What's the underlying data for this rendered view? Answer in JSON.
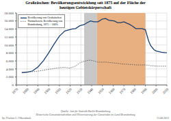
{
  "chart_data": {
    "type": "line",
    "title": "Großzäschen: Bevölkerungsentwicklung seit 1875 auf der Fläche der\nheutigen Gebietskörperschaft",
    "x": [
      1875,
      1880,
      1885,
      1890,
      1895,
      1900,
      1905,
      1910,
      1915,
      1919,
      1922,
      1925,
      1929,
      1933,
      1936,
      1939,
      1942,
      1946,
      1950,
      1953,
      1956,
      1961,
      1964,
      1967,
      1970,
      1973,
      1975,
      1978,
      1981,
      1984,
      1987,
      1990,
      1993,
      1995,
      1998,
      2000,
      2003,
      2005,
      2008,
      2010
    ],
    "series": [
      {
        "name": "Bevölkerung von Großzäschen",
        "color": "#1a3e6e",
        "line_style": "solid",
        "values": [
          3100,
          3200,
          3500,
          4500,
          6000,
          8000,
          10200,
          12200,
          13500,
          13800,
          14000,
          14100,
          14800,
          15100,
          15600,
          16000,
          15800,
          15800,
          16500,
          16600,
          16200,
          16000,
          15600,
          15600,
          15800,
          15400,
          15200,
          14700,
          14100,
          14100,
          14100,
          13800,
          11000,
          9800,
          8800,
          8500,
          8300,
          8200,
          8100,
          8050
        ]
      },
      {
        "name": "Normalisierte Bevölkerung von\nBrandenburg, 1875 = 100%",
        "color": "#444444",
        "line_style": "dotted",
        "values": [
          3100,
          3200,
          3300,
          3450,
          3650,
          3900,
          4100,
          4300,
          4400,
          4200,
          4400,
          4700,
          5500,
          5900,
          6100,
          6200,
          6000,
          5700,
          5700,
          5700,
          5600,
          5500,
          5400,
          5300,
          5200,
          5200,
          5100,
          5100,
          5000,
          5000,
          5000,
          5000,
          4900,
          4800,
          4800,
          4700,
          4700,
          4700,
          4700,
          4700
        ]
      }
    ],
    "xlim": [
      1870,
      2010
    ],
    "xticks": [
      1870,
      1880,
      1890,
      1900,
      1910,
      1920,
      1930,
      1940,
      1950,
      1960,
      1970,
      1980,
      1990,
      2000,
      2010
    ],
    "ylim": [
      0,
      18000
    ],
    "yticks": [
      0,
      {
        "value": 2000,
        "label": "2.000"
      },
      {
        "value": 4000,
        "label": "4.000"
      },
      {
        "value": 6000,
        "label": "6.000"
      },
      {
        "value": 8000,
        "label": "8.000"
      },
      {
        "value": 10000,
        "label": "10.000"
      },
      {
        "value": 12000,
        "label": "12.000"
      },
      {
        "value": 14000,
        "label": "14.000"
      },
      {
        "value": 16000,
        "label": "16.000"
      },
      {
        "value": 18000,
        "label": "18.000"
      }
    ],
    "regions": [
      {
        "x0": 1933,
        "x1": 1945,
        "color": "#c8c8c8"
      },
      {
        "x0": 1945,
        "x1": 1990,
        "color": "#e8b080"
      }
    ],
    "grid": true,
    "legend": "upper left",
    "annotations": [
      "Quelle: Amt für Statistik Berlin-Brandenburg\nHistorische Gemeindestatistiken und Historisierung der Gemeinden im Land Brandenburg",
      "by: Florian G. Olbernhack",
      "13.08.2012"
    ]
  }
}
